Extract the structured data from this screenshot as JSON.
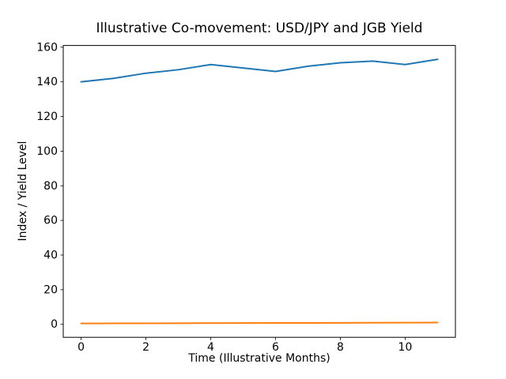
{
  "figure": {
    "background": "#ffffff",
    "frame_color": "#000000"
  },
  "chart_data": {
    "type": "line",
    "title": "Illustrative Co-movement: USD/JPY and JGB Yield",
    "xlabel": "Time (Illustrative Months)",
    "ylabel": "Index / Yield Level",
    "x": [
      0,
      1,
      2,
      3,
      4,
      5,
      6,
      7,
      8,
      9,
      10,
      11
    ],
    "series": [
      {
        "name": "USD/JPY",
        "color": "#1f77b4",
        "values": [
          140,
          142,
          145,
          147,
          150,
          148,
          146,
          149,
          151,
          152,
          150,
          153
        ]
      },
      {
        "name": "JGB Yield",
        "color": "#ff7f0e",
        "values": [
          0.5,
          0.55,
          0.59,
          0.64,
          0.68,
          0.73,
          0.77,
          0.82,
          0.86,
          0.91,
          0.95,
          1.0
        ]
      }
    ],
    "xticks": [
      0,
      2,
      4,
      6,
      8,
      10
    ],
    "yticks": [
      0,
      20,
      40,
      60,
      80,
      100,
      120,
      140,
      160
    ],
    "xlim": [
      -0.55,
      11.55
    ],
    "ylim": [
      -7.5,
      161
    ],
    "grid": false,
    "legend": "none"
  }
}
